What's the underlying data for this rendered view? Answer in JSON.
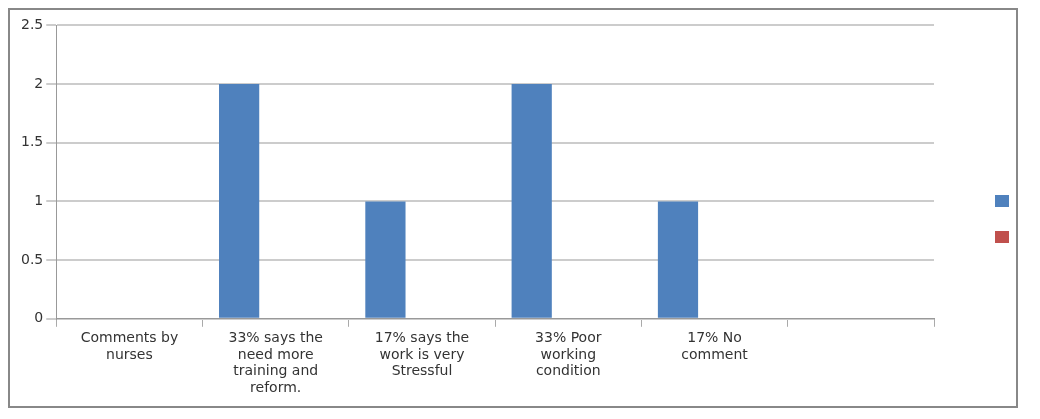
{
  "chart_data": {
    "type": "bar",
    "categories": [
      "Comments by nurses",
      "33% says the need more training and reform.",
      "17% says the work is very Stressful",
      "33% Poor working condition",
      "17% No comment",
      null
    ],
    "series": [
      {
        "color": "#4f81bd",
        "values": [
          null,
          2,
          1,
          2,
          1,
          null
        ]
      },
      {
        "color": "#c0504d",
        "values": [
          null,
          null,
          null,
          null,
          null,
          null
        ]
      }
    ],
    "ylim": [
      0,
      2.5
    ],
    "yticks": [
      0,
      0.5,
      1,
      1.5,
      2,
      2.5
    ],
    "grid": "y"
  }
}
